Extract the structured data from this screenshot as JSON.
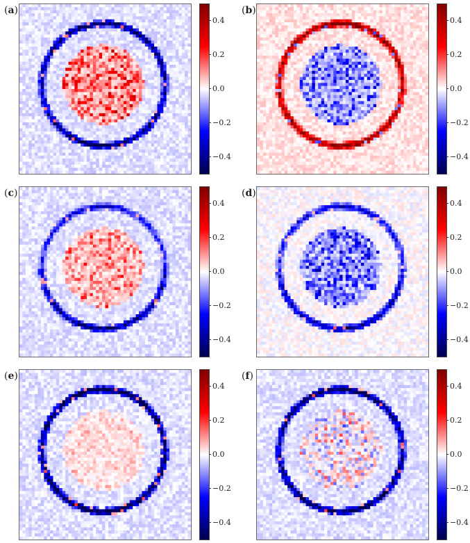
{
  "chart_data": [
    {
      "type": "heatmap",
      "panel_label": "a",
      "ring": "negative",
      "ring_top_weight": 1.0,
      "ring_bottom_weight": 1.0,
      "inner": "positive",
      "inner_strength": 0.55,
      "background": "slight-negative",
      "colorbar": {
        "colormap": "seismic",
        "range": [
          -0.5,
          0.5
        ],
        "ticks": [
          "0.4",
          "0.2",
          "0.0",
          "−0.2",
          "−0.4"
        ]
      }
    },
    {
      "type": "heatmap",
      "panel_label": "b",
      "ring": "positive",
      "ring_top_weight": 1.0,
      "ring_bottom_weight": 1.0,
      "inner": "negative",
      "inner_strength": 0.5,
      "background": "slight-positive",
      "colorbar": {
        "colormap": "seismic",
        "range": [
          -0.5,
          0.5
        ],
        "ticks": [
          "0.4",
          "0.2",
          "0.0",
          "−0.2",
          "−0.4"
        ]
      }
    },
    {
      "type": "heatmap",
      "panel_label": "c",
      "ring": "negative",
      "ring_top_weight": 0.55,
      "ring_bottom_weight": 0.9,
      "inner": "positive",
      "inner_strength": 0.35,
      "background": "slight-negative",
      "colorbar": {
        "colormap": "seismic",
        "range": [
          -0.5,
          0.5
        ],
        "ticks": [
          "0.4",
          "0.2",
          "0.0",
          "−0.2",
          "−0.4"
        ]
      }
    },
    {
      "type": "heatmap",
      "panel_label": "d",
      "ring": "negative",
      "ring_top_weight": 0.6,
      "ring_bottom_weight": 0.8,
      "inner": "negative",
      "inner_strength": 0.55,
      "background": "near-zero",
      "colorbar": {
        "colormap": "seismic",
        "range": [
          -0.5,
          0.5
        ],
        "ticks": [
          "0.4",
          "0.2",
          "0.0",
          "−0.2",
          "−0.4"
        ]
      }
    },
    {
      "type": "heatmap",
      "panel_label": "e",
      "ring": "negative",
      "ring_top_weight": 1.2,
      "ring_bottom_weight": 1.2,
      "inner": "slight-positive",
      "inner_strength": 0.15,
      "background": "slight-negative",
      "colorbar": {
        "colormap": "seismic",
        "range": [
          -0.5,
          0.5
        ],
        "ticks": [
          "0.4",
          "0.2",
          "0.0",
          "−0.2",
          "−0.4"
        ]
      }
    },
    {
      "type": "heatmap",
      "panel_label": "f",
      "ring": "negative",
      "ring_top_weight": 1.1,
      "ring_bottom_weight": 1.1,
      "inner": "mixed",
      "inner_strength": 0.25,
      "background": "slight-negative",
      "colorbar": {
        "colormap": "seismic",
        "range": [
          -0.5,
          0.5
        ],
        "ticks": [
          "0.4",
          "0.2",
          "0.0",
          "−0.2",
          "−0.4"
        ]
      }
    }
  ]
}
